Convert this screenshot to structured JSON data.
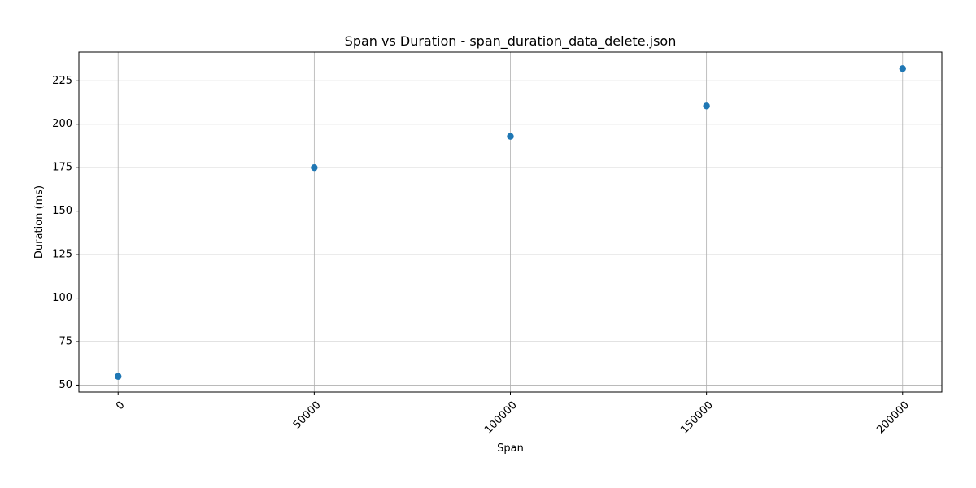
{
  "chart_data": {
    "type": "scatter",
    "title": "Span vs Duration - span_duration_data_delete.json",
    "xlabel": "Span",
    "ylabel": "Duration (ms)",
    "x": [
      0,
      50000,
      100000,
      150000,
      200000
    ],
    "y": [
      55,
      175,
      193,
      210.5,
      232
    ],
    "xlim": [
      -10000,
      210000
    ],
    "ylim": [
      46,
      241.5
    ],
    "xticks": [
      0,
      50000,
      100000,
      150000,
      200000
    ],
    "xtick_labels": [
      "0",
      "50000",
      "100000",
      "150000",
      "200000"
    ],
    "yticks": [
      50,
      75,
      100,
      125,
      150,
      175,
      200,
      225
    ],
    "ytick_labels": [
      "50",
      "75",
      "100",
      "125",
      "150",
      "175",
      "200",
      "225"
    ],
    "xtick_rotation": 45,
    "grid": true,
    "marker_color": "#1f77b4"
  }
}
